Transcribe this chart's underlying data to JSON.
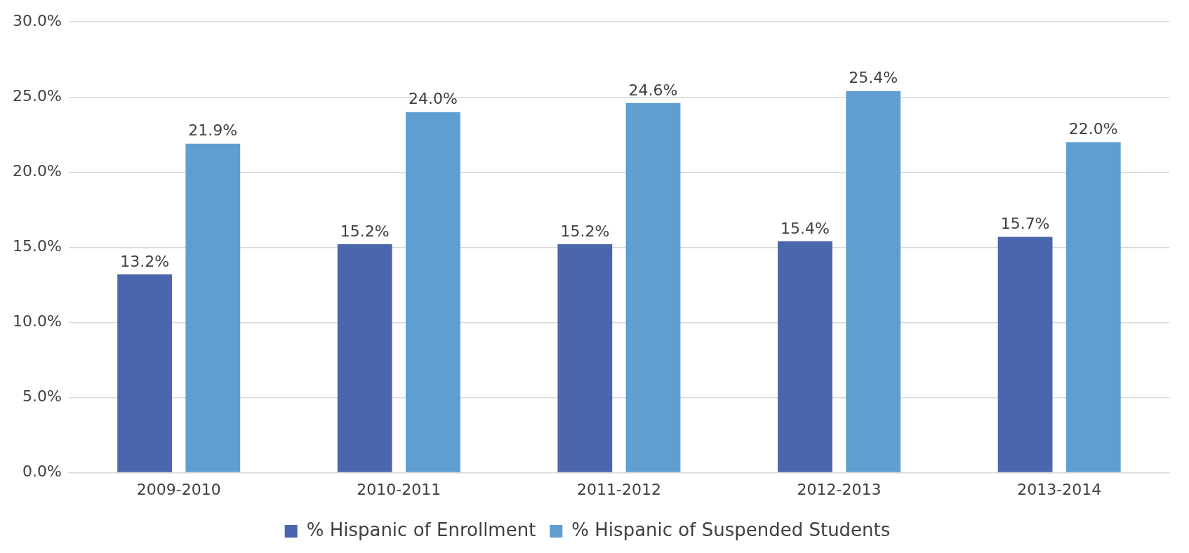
{
  "chart_data": {
    "type": "bar",
    "categories": [
      "2009-2010",
      "2010-2011",
      "2011-2012",
      "2012-2013",
      "2013-2014"
    ],
    "series": [
      {
        "name": "% Hispanic of Enrollment",
        "color": "#4a66ac",
        "values": [
          13.2,
          15.2,
          15.2,
          15.4,
          15.7
        ],
        "value_labels": [
          "13.2%",
          "15.2%",
          "15.2%",
          "15.4%",
          "15.7%"
        ]
      },
      {
        "name": "% Hispanic of Suspended Students",
        "color": "#5f9ed1",
        "values": [
          21.9,
          24.0,
          24.6,
          25.4,
          22.0
        ],
        "value_labels": [
          "21.9%",
          "24.0%",
          "24.6%",
          "25.4%",
          "22.0%"
        ]
      }
    ],
    "ylim": [
      0,
      30
    ],
    "yticks": [
      {
        "value": 0,
        "label": "0.0%"
      },
      {
        "value": 5,
        "label": "5.0%"
      },
      {
        "value": 10,
        "label": "10.0%"
      },
      {
        "value": 15,
        "label": "15.0%"
      },
      {
        "value": 20,
        "label": "20.0%"
      },
      {
        "value": 25,
        "label": "25.0%"
      },
      {
        "value": 30,
        "label": "30.0%"
      }
    ],
    "grid": "y",
    "legend": "bottom"
  }
}
